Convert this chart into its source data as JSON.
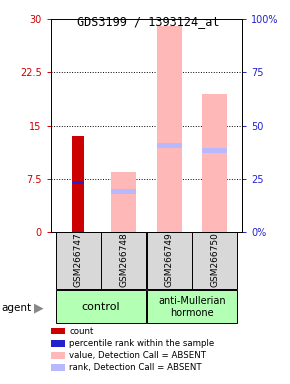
{
  "title": "GDS3199 / 1393124_at",
  "samples": [
    "GSM266747",
    "GSM266748",
    "GSM266749",
    "GSM266750"
  ],
  "ylim_left": [
    0,
    30
  ],
  "ylim_right": [
    0,
    100
  ],
  "yticks_left": [
    0,
    7.5,
    15,
    22.5,
    30
  ],
  "yticks_right": [
    0,
    25,
    50,
    75,
    100
  ],
  "ytick_labels_left": [
    "0",
    "7.5",
    "15",
    "22.5",
    "30"
  ],
  "ytick_labels_right": [
    "0%",
    "25",
    "50",
    "75",
    "100%"
  ],
  "count_values": [
    13.5,
    0,
    0,
    0
  ],
  "rank_values": [
    7.0,
    0,
    0,
    0
  ],
  "pink_bar_values": [
    0,
    8.5,
    29.0,
    19.5
  ],
  "blue_marker_values_abs": [
    0,
    5.8,
    12.2,
    11.5
  ],
  "count_color": "#cc0000",
  "rank_color": "#2222cc",
  "pink_bar_color": "#ffb8b8",
  "blue_marker_color": "#b8b8ff",
  "left_axis_color": "#cc0000",
  "right_axis_color": "#2222cc",
  "control_color": "#b3ffb3",
  "hormone_color": "#b3ffb3",
  "sample_box_color": "#d8d8d8",
  "legend_items": [
    {
      "label": "count",
      "color": "#cc0000"
    },
    {
      "label": "percentile rank within the sample",
      "color": "#2222cc"
    },
    {
      "label": "value, Detection Call = ABSENT",
      "color": "#ffb8b8"
    },
    {
      "label": "rank, Detection Call = ABSENT",
      "color": "#b8b8ff"
    }
  ]
}
